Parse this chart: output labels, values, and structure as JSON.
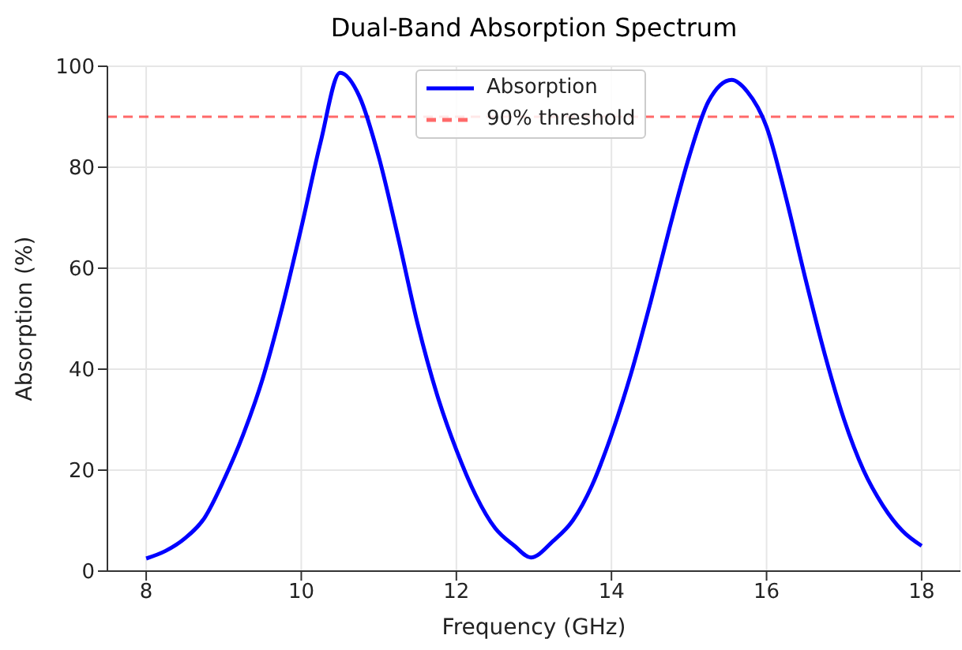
{
  "chart_data": {
    "type": "line",
    "title": "Dual-Band Absorption Spectrum",
    "xlabel": "Frequency (GHz)",
    "ylabel": "Absorption (%)",
    "x": [
      8,
      8.25,
      8.5,
      8.75,
      9,
      9.25,
      9.5,
      9.75,
      10,
      10.25,
      10.5,
      10.75,
      11,
      11.25,
      11.5,
      11.75,
      12,
      12.25,
      12.5,
      12.75,
      12.96,
      13.25,
      13.5,
      13.75,
      14,
      14.25,
      14.5,
      14.75,
      15,
      15.25,
      15.55,
      15.75,
      16,
      16.25,
      16.5,
      16.75,
      17,
      17.25,
      17.5,
      17.75,
      18
    ],
    "series": [
      {
        "name": "Absorption",
        "color": "#0000ff",
        "values": [
          2.5,
          4,
          6.5,
          10.5,
          18,
          27,
          38,
          52,
          68,
          85,
          98.7,
          94,
          82,
          66,
          49,
          35,
          24,
          15,
          8.5,
          5,
          2.7,
          6,
          10,
          17,
          27,
          39,
          53,
          68,
          82,
          93,
          97.3,
          95,
          88,
          74,
          58,
          43,
          30,
          20,
          13,
          8,
          5
        ]
      }
    ],
    "xlim": [
      7.5,
      18.5
    ],
    "xticks": [
      8,
      10,
      12,
      14,
      16,
      18
    ],
    "ylim": [
      0,
      100
    ],
    "yticks": [
      0,
      20,
      40,
      60,
      80,
      100
    ],
    "ref_lines": [
      {
        "axis": "y",
        "value": 90,
        "label": "90% threshold",
        "color": "#ff4444",
        "line_style": "dashed"
      }
    ],
    "grid": true,
    "legend": "top",
    "marker": "none",
    "line_style": "solid"
  }
}
